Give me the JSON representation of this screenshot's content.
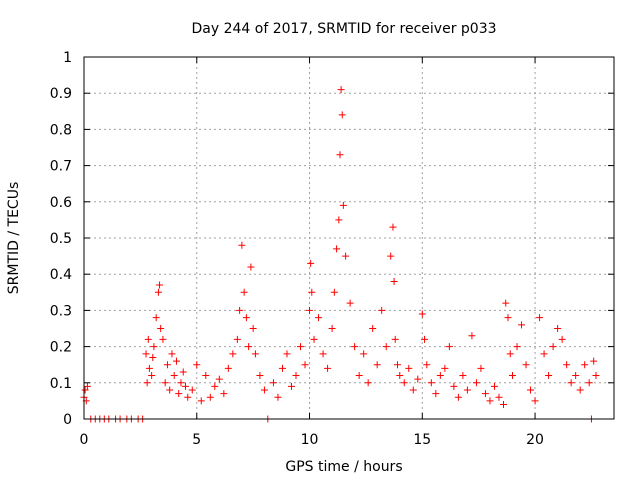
{
  "chart_data": {
    "type": "scatter",
    "title": "Day 244 of 2017, SRMTID for receiver p033",
    "xlabel": "GPS time / hours",
    "ylabel": "SRMTID / TECUs",
    "xlim": [
      0,
      23.5
    ],
    "ylim": [
      0,
      1
    ],
    "grid": true,
    "marker": "+",
    "color": "#ff0000",
    "x_ticks": [
      0,
      5,
      10,
      15,
      20
    ],
    "x_tick_labels": [
      "0",
      "5",
      "10",
      "15",
      "20"
    ],
    "y_ticks": [
      0,
      0.1,
      0.2,
      0.3,
      0.4,
      0.5,
      0.6,
      0.7,
      0.8,
      0.9,
      1
    ],
    "y_tick_labels": [
      "0",
      "0.1",
      "0.2",
      "0.3",
      "0.4",
      "0.5",
      "0.6",
      "0.7",
      "0.8",
      "0.9",
      "1"
    ],
    "series": [
      {
        "name": "p033",
        "x": [
          0.0,
          0.05,
          0.1,
          0.15,
          0.3,
          0.5,
          0.7,
          0.9,
          1.1,
          1.4,
          1.6,
          1.9,
          2.1,
          2.4,
          2.6,
          2.75,
          2.8,
          2.85,
          2.9,
          3.0,
          3.05,
          3.1,
          3.2,
          3.3,
          3.35,
          3.4,
          3.5,
          3.6,
          3.7,
          3.8,
          3.9,
          4.0,
          4.1,
          4.2,
          4.3,
          4.4,
          4.5,
          4.6,
          4.8,
          5.0,
          5.2,
          5.4,
          5.6,
          5.8,
          6.0,
          6.2,
          6.4,
          6.6,
          6.8,
          6.9,
          7.0,
          7.1,
          7.2,
          7.3,
          7.4,
          7.5,
          7.6,
          7.8,
          8.0,
          8.15,
          8.4,
          8.6,
          8.8,
          9.0,
          9.2,
          9.4,
          9.6,
          9.8,
          10.0,
          10.05,
          10.1,
          10.2,
          10.4,
          10.6,
          10.8,
          11.0,
          11.1,
          11.2,
          11.3,
          11.35,
          11.4,
          11.45,
          11.5,
          11.6,
          11.8,
          12.0,
          12.2,
          12.4,
          12.6,
          12.8,
          13.0,
          13.2,
          13.4,
          13.6,
          13.7,
          13.75,
          13.8,
          13.9,
          14.0,
          14.2,
          14.4,
          14.6,
          14.8,
          15.0,
          15.1,
          15.2,
          15.4,
          15.6,
          15.8,
          16.0,
          16.2,
          16.4,
          16.6,
          16.8,
          17.0,
          17.2,
          17.4,
          17.6,
          17.8,
          18.0,
          18.2,
          18.4,
          18.6,
          18.7,
          18.8,
          18.9,
          19.0,
          19.2,
          19.4,
          19.6,
          19.8,
          20.0,
          20.2,
          20.4,
          20.6,
          20.8,
          21.0,
          21.2,
          21.4,
          21.6,
          21.8,
          22.0,
          22.2,
          22.4,
          22.5,
          22.6,
          22.7
        ],
        "y": [
          0.06,
          0.08,
          0.05,
          0.09,
          0.0,
          0.0,
          0.0,
          0.0,
          0.0,
          0.0,
          0.0,
          0.0,
          0.0,
          0.0,
          0.0,
          0.18,
          0.1,
          0.22,
          0.14,
          0.12,
          0.17,
          0.2,
          0.28,
          0.35,
          0.37,
          0.25,
          0.22,
          0.1,
          0.15,
          0.08,
          0.18,
          0.12,
          0.16,
          0.07,
          0.1,
          0.13,
          0.09,
          0.06,
          0.08,
          0.15,
          0.05,
          0.12,
          0.06,
          0.09,
          0.11,
          0.07,
          0.14,
          0.18,
          0.22,
          0.3,
          0.48,
          0.35,
          0.28,
          0.2,
          0.42,
          0.25,
          0.18,
          0.12,
          0.08,
          0.0,
          0.1,
          0.06,
          0.14,
          0.18,
          0.09,
          0.12,
          0.2,
          0.15,
          0.3,
          0.43,
          0.35,
          0.22,
          0.28,
          0.18,
          0.14,
          0.25,
          0.35,
          0.47,
          0.55,
          0.73,
          0.91,
          0.84,
          0.59,
          0.45,
          0.32,
          0.2,
          0.12,
          0.18,
          0.1,
          0.25,
          0.15,
          0.3,
          0.2,
          0.45,
          0.53,
          0.38,
          0.22,
          0.15,
          0.12,
          0.1,
          0.14,
          0.08,
          0.11,
          0.29,
          0.22,
          0.15,
          0.1,
          0.07,
          0.12,
          0.14,
          0.2,
          0.09,
          0.06,
          0.12,
          0.08,
          0.23,
          0.1,
          0.14,
          0.07,
          0.05,
          0.09,
          0.06,
          0.04,
          0.32,
          0.28,
          0.18,
          0.12,
          0.2,
          0.26,
          0.15,
          0.08,
          0.05,
          0.28,
          0.18,
          0.12,
          0.2,
          0.25,
          0.22,
          0.15,
          0.1,
          0.12,
          0.08,
          0.15,
          0.1,
          0.0,
          0.16,
          0.12
        ]
      }
    ]
  }
}
